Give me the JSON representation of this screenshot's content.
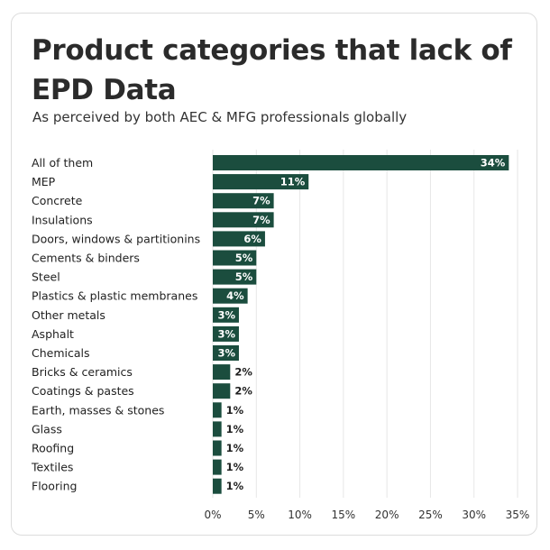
{
  "chart_data": {
    "type": "bar",
    "orientation": "horizontal",
    "title": "Product categories that lack of EPD Data",
    "subtitle": "As perceived by both AEC & MFG professionals globally",
    "categories": [
      "All of them",
      "MEP",
      "Concrete",
      "Insulations",
      "Doors, windows & partitionins",
      "Cements & binders",
      "Steel",
      "Plastics & plastic membranes",
      "Other metals",
      "Asphalt",
      "Chemicals",
      "Bricks & ceramics",
      "Coatings & pastes",
      "Earth, masses & stones",
      "Glass",
      "Roofing",
      "Textiles",
      "Flooring"
    ],
    "values": [
      34,
      11,
      7,
      7,
      6,
      5,
      5,
      4,
      3,
      3,
      3,
      2,
      2,
      1,
      1,
      1,
      1,
      1
    ],
    "value_labels": [
      "34%",
      "11%",
      "7%",
      "7%",
      "6%",
      "5%",
      "5%",
      "4%",
      "3%",
      "3%",
      "3%",
      "2%",
      "2%",
      "1%",
      "1%",
      "1%",
      "1%",
      "1%"
    ],
    "xlim": [
      0,
      35
    ],
    "xticks": [
      0,
      5,
      10,
      15,
      20,
      25,
      30,
      35
    ],
    "xtick_labels": [
      "0%",
      "5%",
      "10%",
      "15%",
      "20%",
      "25%",
      "30%",
      "35%"
    ],
    "xlabel": "",
    "ylabel": "",
    "grid": "vertical",
    "bar_color": "#1b4d3e",
    "grid_color": "#e6e6e6"
  }
}
